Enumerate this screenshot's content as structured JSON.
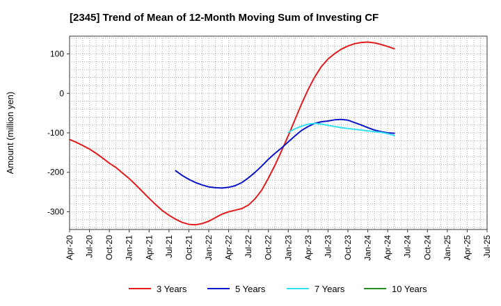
{
  "chart_data": {
    "type": "line",
    "title": "[2345]  Trend of Mean of 12-Month Moving Sum of Investing CF",
    "xlabel": "",
    "ylabel": "Amount (million yen)",
    "ylim": [
      -345,
      145
    ],
    "yticks": [
      100,
      0,
      -100,
      -200,
      -300
    ],
    "x_ticks": [
      "Apr-20",
      "Jul-20",
      "Oct-20",
      "Jan-21",
      "Apr-21",
      "Jul-21",
      "Oct-21",
      "Jan-22",
      "Apr-22",
      "Jul-22",
      "Oct-22",
      "Jan-23",
      "Apr-23",
      "Jul-23",
      "Oct-23",
      "Jan-24",
      "Apr-24",
      "Jul-24",
      "Oct-24",
      "Jan-25",
      "Apr-25",
      "Jul-25"
    ],
    "grid": true,
    "legend_position": "bottom",
    "series": [
      {
        "name": "3 Years",
        "color": "#e31a1c",
        "x": [
          0,
          1,
          2,
          3,
          4,
          5,
          6,
          7,
          8,
          9,
          10,
          11,
          12,
          13,
          14,
          15,
          16,
          17,
          18,
          19,
          20,
          21,
          22,
          23,
          24,
          25,
          26,
          27,
          28,
          29,
          30,
          31,
          32,
          33,
          34,
          35,
          36,
          37,
          38,
          39,
          40,
          41,
          42,
          43,
          44,
          45,
          46,
          47,
          48,
          49,
          50,
          51,
          52,
          53,
          54,
          55,
          56,
          57,
          58,
          59,
          60
        ],
        "values": [
          -117,
          -124,
          -132,
          -141,
          -152,
          -164,
          -177,
          -188,
          -202,
          -216,
          -232,
          -249,
          -266,
          -282,
          -297,
          -309,
          -319,
          -327,
          -332,
          -333,
          -330,
          -324,
          -315,
          -306,
          -300,
          -296,
          -292,
          -283,
          -267,
          -245,
          -215,
          -182,
          -145,
          -107,
          -67,
          -27,
          10,
          42,
          68,
          87,
          101,
          112,
          120,
          126,
          129,
          130,
          128,
          124,
          119,
          113,
          null,
          null,
          null,
          null,
          null,
          null,
          null,
          null,
          null,
          null,
          null
        ]
      },
      {
        "name": "5 Years",
        "color": "#0a14c8",
        "x": [
          0,
          1,
          2,
          3,
          4,
          5,
          6,
          7,
          8,
          9,
          10,
          11,
          12,
          13,
          14,
          15,
          16,
          17,
          18,
          19,
          20,
          21,
          22,
          23,
          24,
          25,
          26,
          27,
          28,
          29,
          30,
          31,
          32,
          33,
          34,
          35,
          36,
          37,
          38,
          39,
          40,
          41,
          42,
          43,
          44,
          45,
          46,
          47,
          48,
          49,
          50,
          51,
          52,
          53,
          54,
          55,
          56,
          57,
          58,
          59,
          60
        ],
        "values": [
          null,
          null,
          null,
          null,
          null,
          null,
          null,
          null,
          null,
          null,
          null,
          null,
          null,
          null,
          null,
          null,
          -196,
          -208,
          -218,
          -226,
          -232,
          -237,
          -239,
          -240,
          -238,
          -234,
          -226,
          -214,
          -200,
          -184,
          -167,
          -152,
          -138,
          -123,
          -108,
          -94,
          -84,
          -76,
          -72,
          -70,
          -67,
          -66,
          -68,
          -74,
          -80,
          -87,
          -93,
          -97,
          -100,
          -101,
          null,
          null,
          null,
          null,
          null,
          null,
          null,
          null,
          null,
          null,
          null
        ]
      },
      {
        "name": "7 Years",
        "color": "#33e0f0",
        "x": [
          0,
          1,
          2,
          3,
          4,
          5,
          6,
          7,
          8,
          9,
          10,
          11,
          12,
          13,
          14,
          15,
          16,
          17,
          18,
          19,
          20,
          21,
          22,
          23,
          24,
          25,
          26,
          27,
          28,
          29,
          30,
          31,
          32,
          33,
          34,
          35,
          36,
          37,
          38,
          39,
          40,
          41,
          42,
          43,
          44,
          45,
          46,
          47,
          48,
          49,
          50,
          51,
          52,
          53,
          54,
          55,
          56,
          57,
          58,
          59,
          60
        ],
        "values": [
          null,
          null,
          null,
          null,
          null,
          null,
          null,
          null,
          null,
          null,
          null,
          null,
          null,
          null,
          null,
          null,
          null,
          null,
          null,
          null,
          null,
          null,
          null,
          null,
          null,
          null,
          null,
          null,
          null,
          null,
          null,
          null,
          null,
          -99,
          -90,
          -83,
          -78,
          -76,
          -78,
          -81,
          -84,
          -87,
          -89,
          -91,
          -93,
          -95,
          -97,
          -99,
          -102,
          -107,
          null,
          null,
          null,
          null,
          null,
          null,
          null,
          null,
          null,
          null,
          null
        ]
      },
      {
        "name": "10 Years",
        "color": "#228b22",
        "x": [
          0,
          1,
          2,
          3,
          4,
          5,
          6,
          7,
          8,
          9,
          10,
          11,
          12,
          13,
          14,
          15,
          16,
          17,
          18,
          19,
          20,
          21,
          22,
          23,
          24,
          25,
          26,
          27,
          28,
          29,
          30,
          31,
          32,
          33,
          34,
          35,
          36,
          37,
          38,
          39,
          40,
          41,
          42,
          43,
          44,
          45,
          46,
          47,
          48,
          49,
          50,
          51,
          52,
          53,
          54,
          55,
          56,
          57,
          58,
          59,
          60
        ],
        "values": [
          null,
          null,
          null,
          null,
          null,
          null,
          null,
          null,
          null,
          null,
          null,
          null,
          null,
          null,
          null,
          null,
          null,
          null,
          null,
          null,
          null,
          null,
          null,
          null,
          null,
          null,
          null,
          null,
          null,
          null,
          null,
          null,
          null,
          null,
          null,
          null,
          null,
          null,
          null,
          null,
          null,
          null,
          null,
          null,
          null,
          null,
          null,
          null,
          null,
          null,
          null,
          null,
          null,
          null,
          null,
          null,
          null,
          null,
          null,
          null,
          null
        ]
      }
    ]
  }
}
